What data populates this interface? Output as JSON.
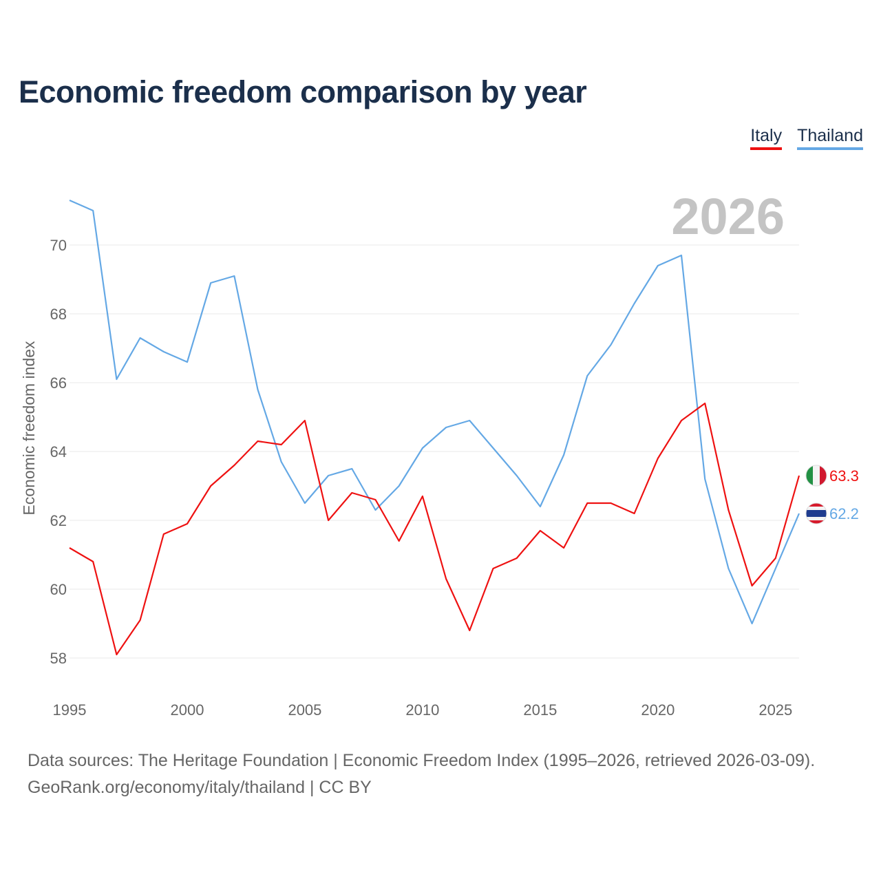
{
  "title": "Economic freedom comparison by year",
  "year_label": "2026",
  "footer": {
    "line1": "Data sources: The Heritage Foundation | Economic Freedom Index (1995–2026, retrieved 2026-03-09).",
    "line2": "GeoRank.org/economy/italy/thailand | CC BY"
  },
  "colors": {
    "italy": "#ee1111",
    "thailand": "#64a8e5",
    "title": "#1b2f4b",
    "axis_text": "#666666",
    "grid": "#e8e8e8",
    "year_watermark": "#c4c4c4"
  },
  "chart_data": {
    "type": "line",
    "title": "Economic freedom comparison by year",
    "ylabel": "Economic freedom index",
    "xlabel": "",
    "xlim": [
      1995,
      2026
    ],
    "ylim": [
      57,
      72
    ],
    "yticks": [
      58,
      60,
      62,
      64,
      66,
      68,
      70
    ],
    "xticks": [
      1995,
      2000,
      2005,
      2010,
      2015,
      2020,
      2025
    ],
    "grid": true,
    "legend": "top-right",
    "x": [
      1995,
      1996,
      1997,
      1998,
      1999,
      2000,
      2001,
      2002,
      2003,
      2004,
      2005,
      2006,
      2007,
      2008,
      2009,
      2010,
      2011,
      2012,
      2013,
      2014,
      2015,
      2016,
      2017,
      2018,
      2019,
      2020,
      2021,
      2022,
      2023,
      2024,
      2025,
      2026
    ],
    "series": [
      {
        "name": "Italy",
        "color": "#ee1111",
        "end_label": "63.3",
        "flag": "italy-flag",
        "values": [
          61.2,
          60.8,
          58.1,
          59.1,
          61.6,
          61.9,
          63.0,
          63.6,
          64.3,
          64.2,
          64.9,
          62.0,
          62.8,
          62.6,
          61.4,
          62.7,
          60.3,
          58.8,
          60.6,
          60.9,
          61.7,
          61.2,
          62.5,
          62.5,
          62.2,
          63.8,
          64.9,
          65.4,
          62.3,
          60.1,
          60.9,
          63.3
        ]
      },
      {
        "name": "Thailand",
        "color": "#64a8e5",
        "end_label": "62.2",
        "flag": "thailand-flag",
        "values": [
          71.3,
          71.0,
          66.1,
          67.3,
          66.9,
          66.6,
          68.9,
          69.1,
          65.8,
          63.7,
          62.5,
          63.3,
          63.5,
          62.3,
          63.0,
          64.1,
          64.7,
          64.9,
          64.1,
          63.3,
          62.4,
          63.9,
          66.2,
          67.1,
          68.3,
          69.4,
          69.7,
          63.2,
          60.6,
          59.0,
          60.6,
          62.2
        ]
      }
    ]
  }
}
